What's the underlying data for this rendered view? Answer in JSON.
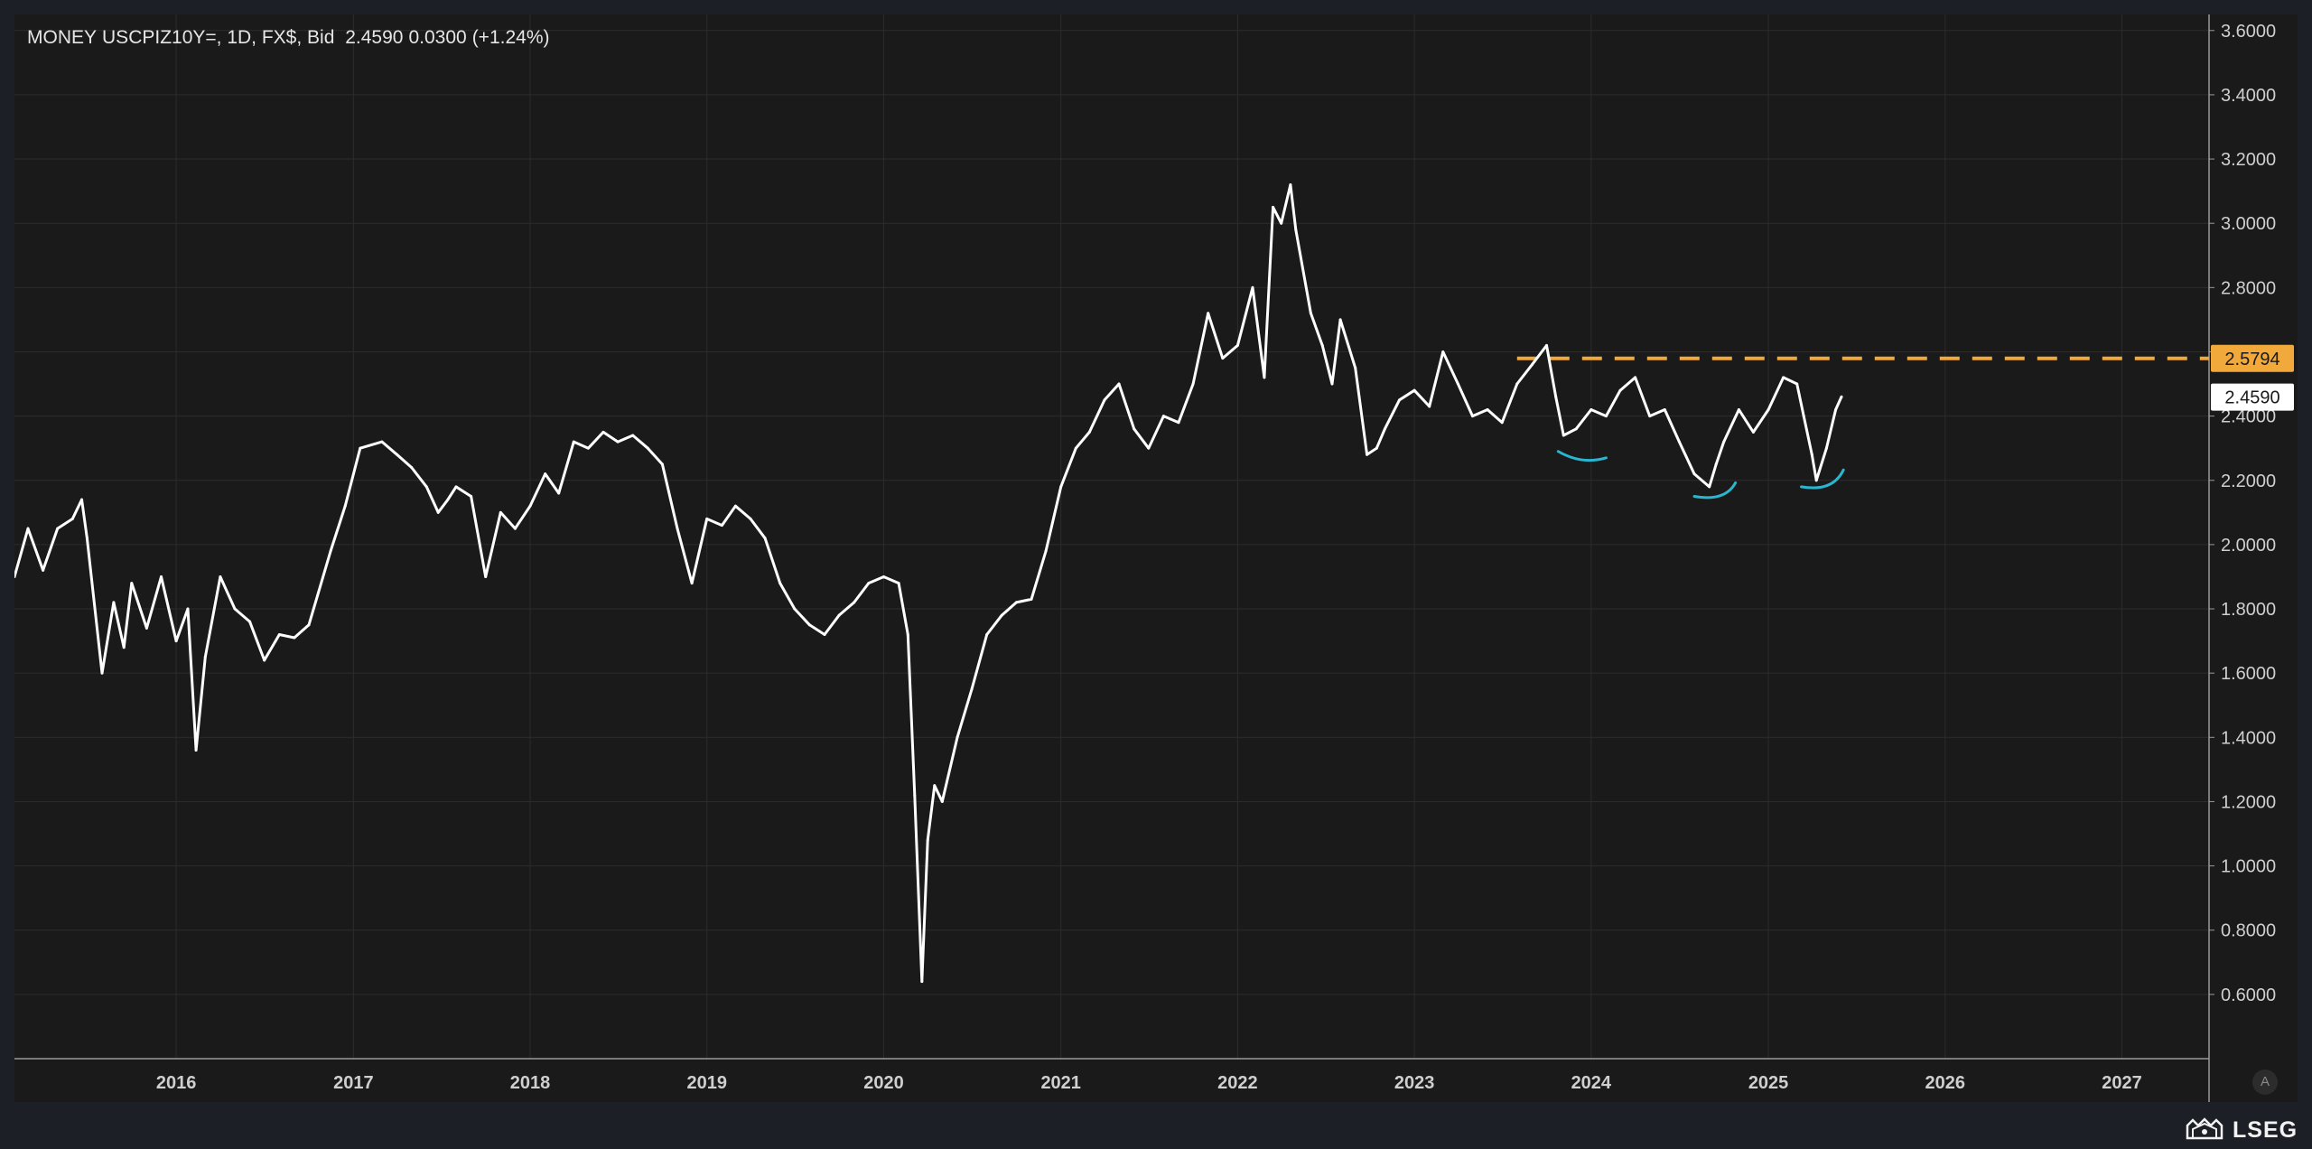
{
  "header": {
    "source": "MONEY",
    "instrument": "USCPIZ10Y=, 1D, FX$, Bid",
    "last": "2.4590",
    "change": "0.0300",
    "change_pct": "(+1.24%)"
  },
  "brand": {
    "name": "LSEG",
    "logo_icon": "lseg-logo-icon"
  },
  "auto_button": {
    "label": "A"
  },
  "colors": {
    "background": "#1a1a1a",
    "grid": "#2c2c2c",
    "line": "#ffffff",
    "level": "#f2a93b",
    "annotation": "#29b6d1",
    "price_label_bg": "#ffffff"
  },
  "chart_data": {
    "type": "line",
    "title": "",
    "xlabel": "",
    "ylabel": "",
    "x_ticks": [
      "2016",
      "2017",
      "2018",
      "2019",
      "2020",
      "2021",
      "2022",
      "2023",
      "2024",
      "2025",
      "2026",
      "2027"
    ],
    "y_ticks": [
      "3.6000",
      "3.4000",
      "3.2000",
      "3.0000",
      "2.8000",
      "2.6000",
      "2.4000",
      "2.2000",
      "2.0000",
      "1.8000",
      "1.6000",
      "1.4000",
      "1.2000",
      "1.0000",
      "0.8000",
      "0.6000"
    ],
    "xlim": [
      "2015-02-01",
      "2027-06-30"
    ],
    "ylim": [
      0.4,
      3.65
    ],
    "grid": true,
    "series": [
      {
        "name": "",
        "x": [
          "2015-02-01",
          "2015-03-01",
          "2015-04-01",
          "2015-05-01",
          "2015-06-01",
          "2015-06-20",
          "2015-07-01",
          "2015-08-01",
          "2015-08-25",
          "2015-09-15",
          "2015-10-01",
          "2015-11-01",
          "2015-12-01",
          "2016-01-01",
          "2016-01-25",
          "2016-02-11",
          "2016-03-01",
          "2016-04-01",
          "2016-05-01",
          "2016-06-01",
          "2016-07-01",
          "2016-08-01",
          "2016-09-01",
          "2016-10-01",
          "2016-11-15",
          "2016-12-15",
          "2017-01-15",
          "2017-03-01",
          "2017-04-01",
          "2017-05-01",
          "2017-06-01",
          "2017-06-25",
          "2017-07-15",
          "2017-08-01",
          "2017-09-01",
          "2017-10-01",
          "2017-11-01",
          "2017-12-01",
          "2018-01-01",
          "2018-02-01",
          "2018-03-01",
          "2018-04-01",
          "2018-05-01",
          "2018-06-01",
          "2018-07-01",
          "2018-08-01",
          "2018-09-01",
          "2018-10-01",
          "2018-11-01",
          "2018-12-01",
          "2019-01-01",
          "2019-02-01",
          "2019-03-01",
          "2019-04-01",
          "2019-05-01",
          "2019-06-01",
          "2019-07-01",
          "2019-08-01",
          "2019-09-01",
          "2019-10-01",
          "2019-11-01",
          "2019-12-01",
          "2020-01-01",
          "2020-02-01",
          "2020-02-20",
          "2020-03-05",
          "2020-03-20",
          "2020-04-01",
          "2020-04-15",
          "2020-05-01",
          "2020-06-01",
          "2020-07-01",
          "2020-08-01",
          "2020-09-01",
          "2020-10-01",
          "2020-11-01",
          "2020-12-01",
          "2021-01-01",
          "2021-02-01",
          "2021-03-01",
          "2021-04-01",
          "2021-05-01",
          "2021-06-01",
          "2021-07-01",
          "2021-08-01",
          "2021-09-01",
          "2021-10-01",
          "2021-11-01",
          "2021-12-01",
          "2022-01-01",
          "2022-02-01",
          "2022-02-25",
          "2022-03-15",
          "2022-04-01",
          "2022-04-20",
          "2022-05-01",
          "2022-06-01",
          "2022-06-25",
          "2022-07-15",
          "2022-08-01",
          "2022-09-01",
          "2022-09-25",
          "2022-10-15",
          "2022-11-01",
          "2022-12-01",
          "2023-01-01",
          "2023-02-01",
          "2023-03-01",
          "2023-04-01",
          "2023-05-01",
          "2023-06-01",
          "2023-07-01",
          "2023-08-01",
          "2023-09-01",
          "2023-10-01",
          "2023-10-20",
          "2023-11-05",
          "2023-12-01",
          "2024-01-01",
          "2024-02-01",
          "2024-03-01",
          "2024-04-01",
          "2024-05-01",
          "2024-06-01",
          "2024-07-01",
          "2024-08-01",
          "2024-09-01",
          "2024-09-15",
          "2024-10-01",
          "2024-11-01",
          "2024-12-01",
          "2025-01-01",
          "2025-02-01",
          "2025-03-01",
          "2025-03-15",
          "2025-04-01",
          "2025-04-10",
          "2025-05-01",
          "2025-05-20",
          "2025-06-01"
        ],
        "y": [
          1.9,
          2.05,
          1.92,
          2.05,
          2.08,
          2.14,
          2.02,
          1.6,
          1.82,
          1.68,
          1.88,
          1.74,
          1.9,
          1.7,
          1.8,
          1.36,
          1.65,
          1.9,
          1.8,
          1.76,
          1.64,
          1.72,
          1.71,
          1.75,
          1.98,
          2.12,
          2.3,
          2.32,
          2.28,
          2.24,
          2.18,
          2.1,
          2.14,
          2.18,
          2.15,
          1.9,
          2.1,
          2.05,
          2.12,
          2.22,
          2.16,
          2.32,
          2.3,
          2.35,
          2.32,
          2.34,
          2.3,
          2.25,
          2.05,
          1.88,
          2.08,
          2.06,
          2.12,
          2.08,
          2.02,
          1.88,
          1.8,
          1.75,
          1.72,
          1.78,
          1.82,
          1.88,
          1.9,
          1.88,
          1.72,
          1.22,
          0.64,
          1.08,
          1.25,
          1.2,
          1.4,
          1.55,
          1.72,
          1.78,
          1.82,
          1.83,
          1.98,
          2.18,
          2.3,
          2.35,
          2.45,
          2.5,
          2.36,
          2.3,
          2.4,
          2.38,
          2.5,
          2.72,
          2.58,
          2.62,
          2.8,
          2.52,
          3.05,
          3.0,
          3.12,
          2.98,
          2.72,
          2.62,
          2.5,
          2.7,
          2.55,
          2.28,
          2.3,
          2.36,
          2.45,
          2.48,
          2.43,
          2.6,
          2.5,
          2.4,
          2.42,
          2.38,
          2.5,
          2.56,
          2.62,
          2.46,
          2.34,
          2.36,
          2.42,
          2.4,
          2.48,
          2.52,
          2.4,
          2.42,
          2.32,
          2.22,
          2.18,
          2.25,
          2.32,
          2.42,
          2.35,
          2.42,
          2.52,
          2.5,
          2.4,
          2.28,
          2.2,
          2.3,
          2.42,
          2.46
        ]
      }
    ],
    "level_line": {
      "value": 2.5794,
      "label": "2.5794",
      "start": "2023-08-01"
    },
    "last_price_label": {
      "value": 2.459,
      "label": "2.4590"
    },
    "annotations": [
      {
        "type": "arc",
        "shape": "down",
        "x": [
          "2023-10-25",
          "2024-02-01"
        ],
        "y": [
          2.29,
          2.27
        ]
      },
      {
        "type": "arc",
        "shape": "up",
        "x": [
          "2024-08-01",
          "2024-10-25"
        ],
        "y": [
          2.15,
          2.17
        ]
      },
      {
        "type": "arc",
        "shape": "up",
        "x": [
          "2025-03-10",
          "2025-06-05"
        ],
        "y": [
          2.18,
          2.21
        ]
      }
    ]
  }
}
